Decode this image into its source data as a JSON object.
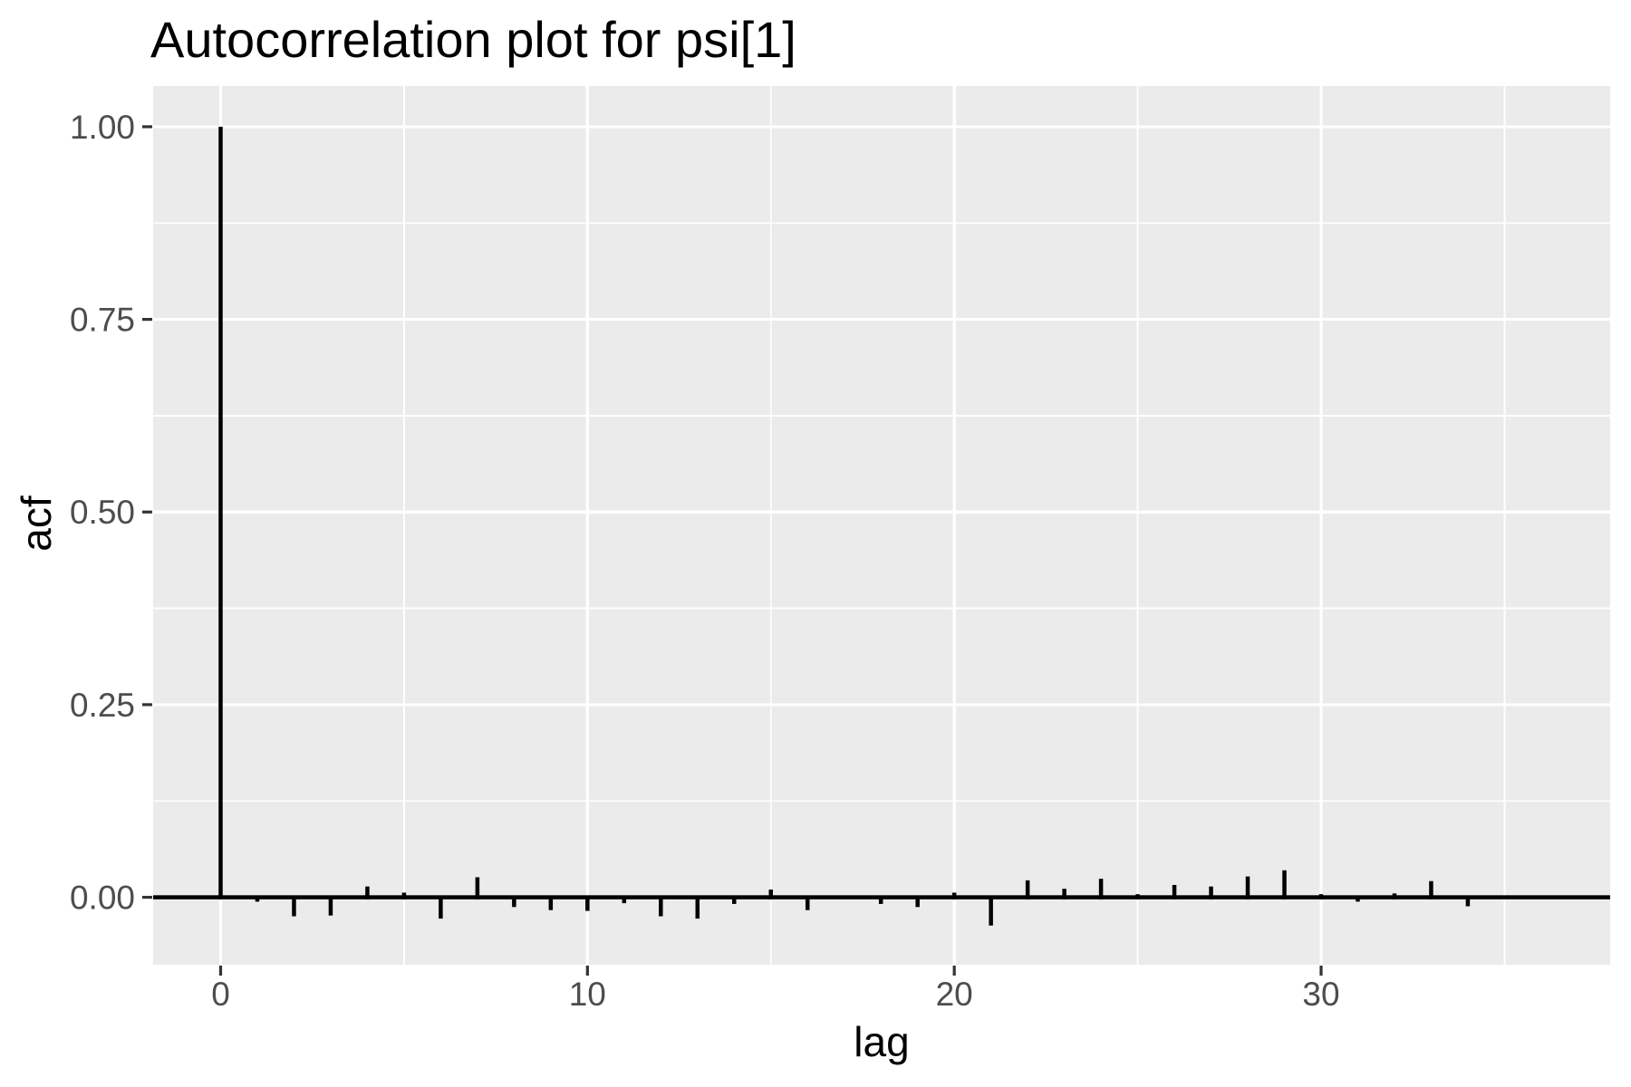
{
  "chart_data": {
    "type": "bar",
    "subtype": "autocorrelation-stem-plot",
    "title": "Autocorrelation plot for psi[1]",
    "xlabel": "lag",
    "ylabel": "acf",
    "x": [
      0,
      1,
      2,
      3,
      4,
      5,
      6,
      7,
      8,
      9,
      10,
      11,
      12,
      13,
      14,
      15,
      16,
      17,
      18,
      19,
      20,
      21,
      22,
      23,
      24,
      25,
      26,
      27,
      28,
      29,
      30,
      31,
      32,
      33,
      34,
      35,
      36
    ],
    "values": [
      1.0,
      -0.003,
      -0.022,
      -0.021,
      0.014,
      0.006,
      -0.025,
      0.026,
      -0.01,
      -0.014,
      -0.015,
      -0.005,
      -0.022,
      -0.025,
      -0.006,
      0.01,
      -0.014,
      0.0,
      -0.006,
      -0.01,
      0.006,
      -0.034,
      0.022,
      0.011,
      0.024,
      0.004,
      0.016,
      0.014,
      0.027,
      0.035,
      0.004,
      -0.003,
      0.005,
      0.021,
      -0.009,
      0.0,
      0.0
    ],
    "x_ticks": {
      "values": [
        0,
        10,
        20,
        30
      ],
      "labels": [
        "0",
        "10",
        "20",
        "30"
      ]
    },
    "y_ticks": {
      "values": [
        0.0,
        0.25,
        0.5,
        0.75,
        1.0
      ],
      "labels": [
        "0.00",
        "0.25",
        "0.50",
        "0.75",
        "1.00"
      ]
    },
    "x_minor": [
      5,
      15,
      25,
      35
    ],
    "y_minor": [
      0.125,
      0.375,
      0.625,
      0.875
    ],
    "xlim": [
      -1.84,
      37.88
    ],
    "ylim": [
      -0.0875,
      1.0528
    ],
    "zero_line": true,
    "legend": "none",
    "grid": "white-major-minor-on-gray",
    "colors": {
      "panel_background": "#EBEBEB",
      "grid_line": "#FFFFFF",
      "bar": "#000000",
      "zero_line": "#000000",
      "tick_mark": "#333333",
      "tick_label": "#4D4D4D",
      "text": "#000000",
      "page_background": "#FFFFFF"
    }
  }
}
